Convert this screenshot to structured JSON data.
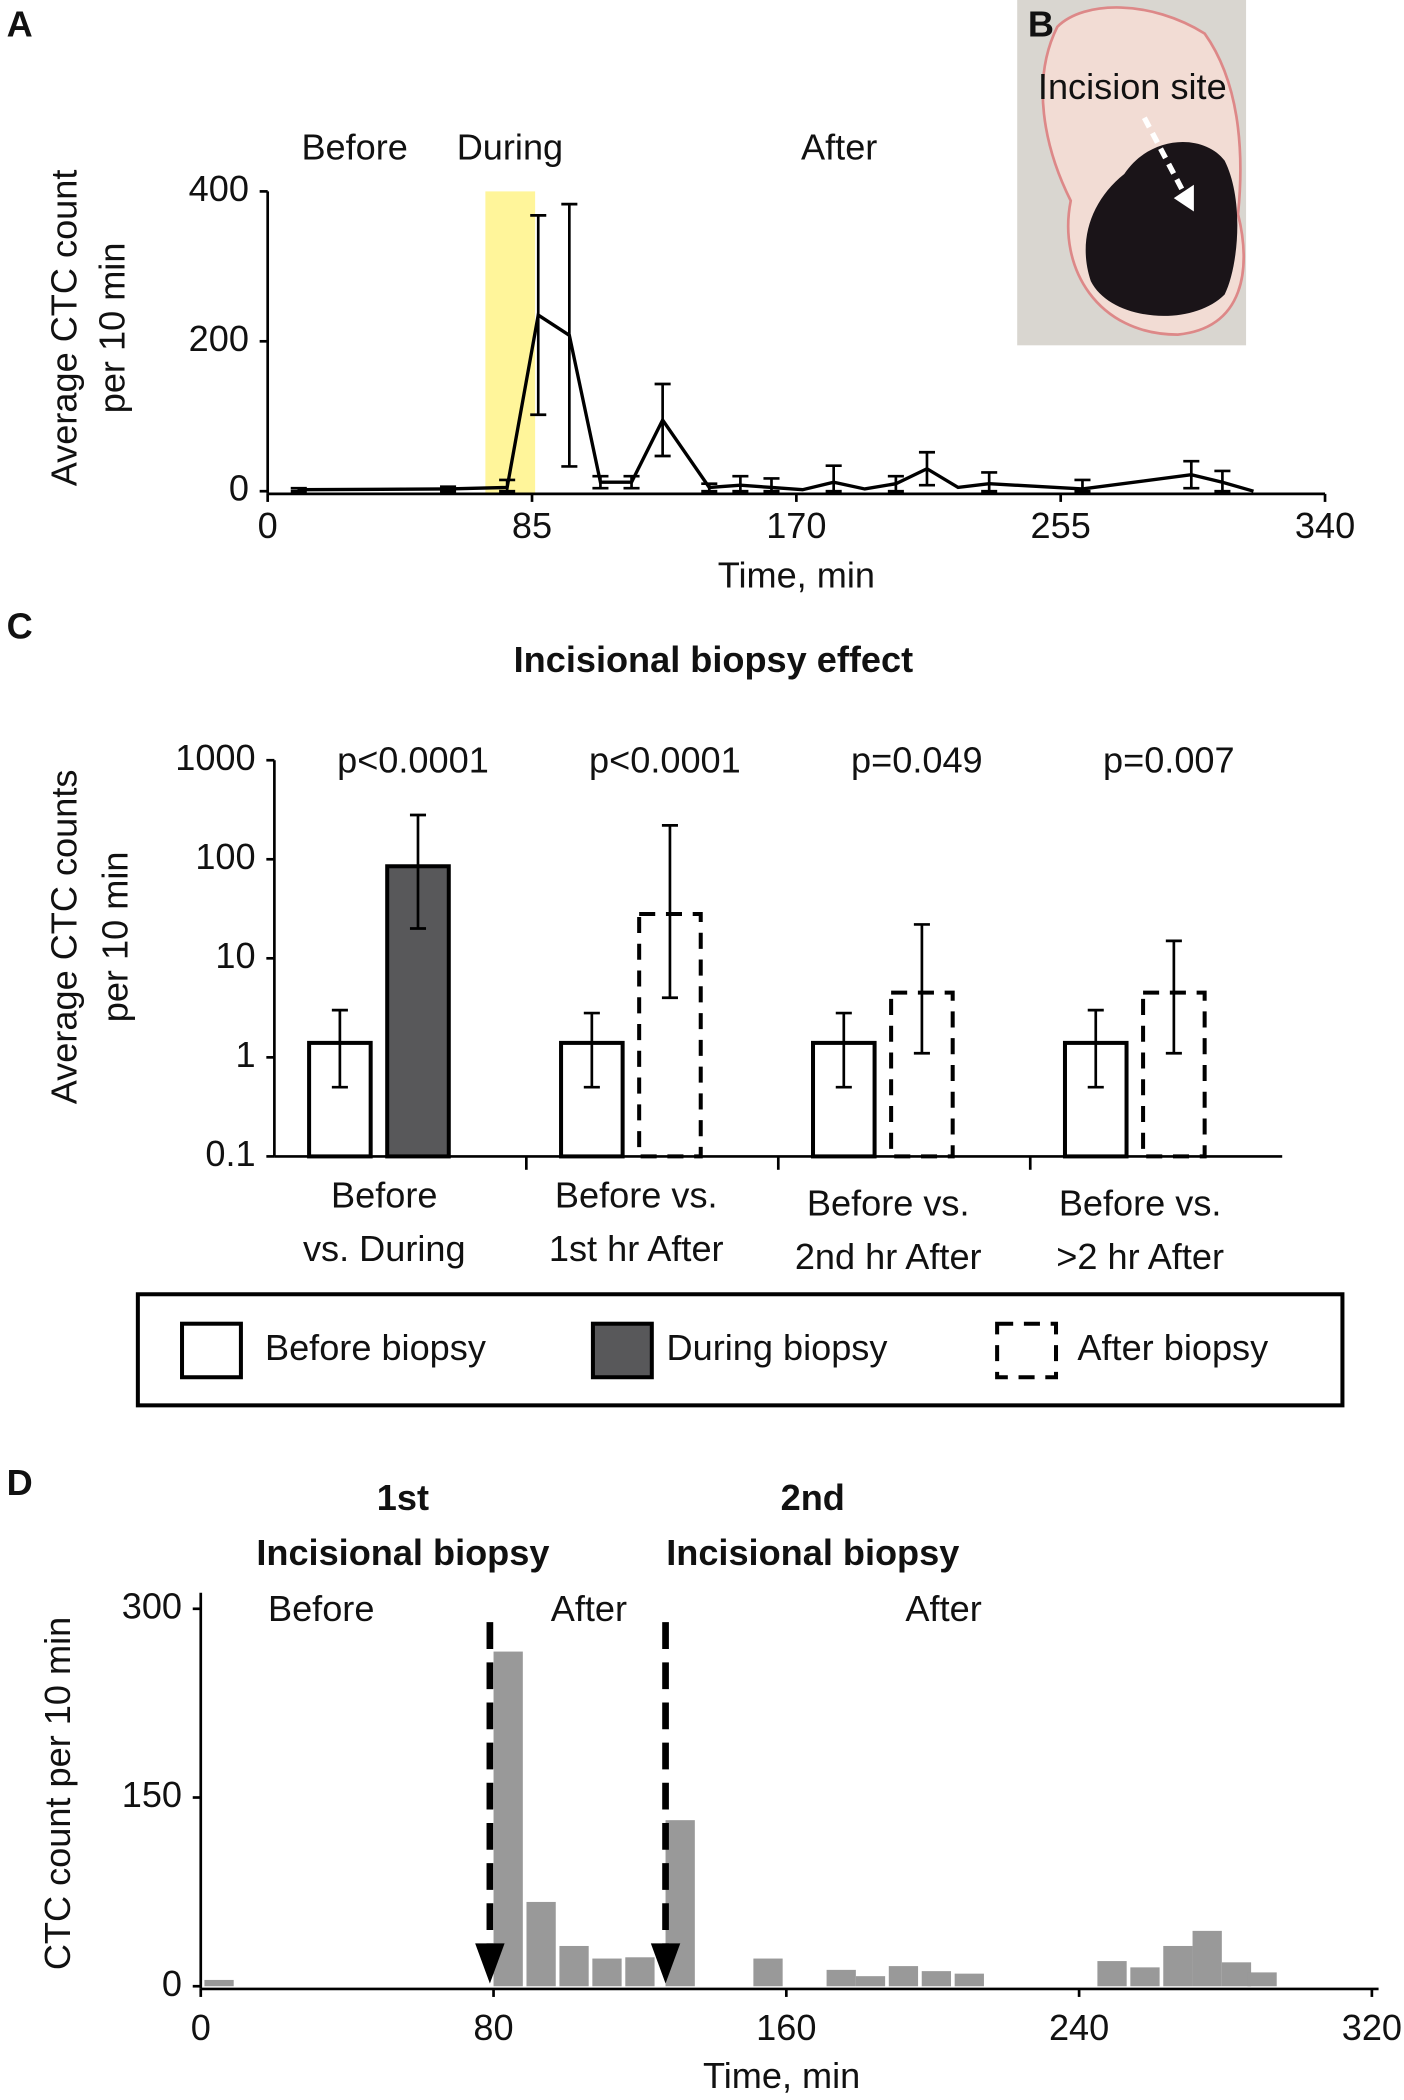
{
  "photo": {
    "panel_label": "B",
    "label": "Incision site"
  },
  "chart_data": [
    {
      "type": "line",
      "panel_label": "A",
      "xlabel": "Time, min",
      "ylabel": [
        "Average CTC count",
        "per 10 min"
      ],
      "xlim": [
        0,
        340
      ],
      "xticks": [
        0,
        85,
        170,
        255,
        340
      ],
      "ylim": [
        0,
        400
      ],
      "yticks": [
        0,
        200,
        400
      ],
      "phase_labels": [
        "Before",
        "During",
        "After"
      ],
      "highlight": {
        "x": [
          70,
          86
        ],
        "color": "#fff59a"
      },
      "series": [
        {
          "color": "#000000",
          "x": [
            10,
            58,
            77,
            87,
            97,
            107,
            117,
            127,
            142,
            152,
            162,
            172,
            182,
            192,
            202,
            212,
            222,
            232,
            262,
            297,
            307,
            317
          ],
          "values": [
            2,
            3,
            5,
            235,
            208,
            12,
            12,
            95,
            5,
            8,
            5,
            2,
            12,
            3,
            10,
            30,
            5,
            10,
            3,
            22,
            12,
            0
          ],
          "errors": [
            2,
            3,
            10,
            133,
            175,
            8,
            8,
            48,
            5,
            12,
            12,
            null,
            22,
            null,
            10,
            22,
            null,
            15,
            12,
            18,
            15,
            null
          ]
        }
      ]
    },
    {
      "type": "bar",
      "panel_label": "C",
      "title": "Incisional biopsy effect",
      "ylabel": [
        "Average CTC counts",
        "per 10 min"
      ],
      "log_y": true,
      "ylim": [
        0.1,
        1000
      ],
      "yticks": [
        0.1,
        1,
        10,
        100,
        1000
      ],
      "categories": [
        [
          "Before",
          "vs. During"
        ],
        [
          "Before vs.",
          "1st hr After"
        ],
        [
          "Before vs.",
          "2nd hr After"
        ],
        [
          "Before vs.",
          ">2 hr After"
        ]
      ],
      "annotations": [
        "p<0.0001",
        "p<0.0001",
        "p=0.049",
        "p=0.007"
      ],
      "legend": "bottom",
      "series": [
        {
          "name": "Before biopsy",
          "color": "#ffffff",
          "dashed": false,
          "values": [
            1.4,
            1.4,
            1.4,
            1.4
          ],
          "errors_low": [
            0.5,
            0.5,
            0.5,
            0.5
          ],
          "errors_high": [
            3,
            2.8,
            2.8,
            3
          ]
        },
        {
          "name": "During biopsy",
          "color": "#58585a",
          "dashed": false,
          "values": [
            85,
            null,
            null,
            null
          ],
          "errors_low": [
            20,
            null,
            null,
            null
          ],
          "errors_high": [
            280,
            null,
            null,
            null
          ]
        },
        {
          "name": "After biopsy",
          "color": "#ffffff",
          "dashed": true,
          "values": [
            null,
            28,
            4.5,
            4.5
          ],
          "errors_low": [
            null,
            4,
            1.1,
            1.1
          ],
          "errors_high": [
            null,
            220,
            22,
            15
          ]
        }
      ]
    },
    {
      "type": "timebar",
      "panel_label": "D",
      "xlabel": "Time, min",
      "ylabel": "CTC count per 10 min",
      "xlim": [
        0,
        320
      ],
      "xticks": [
        0,
        80,
        160,
        240,
        320
      ],
      "ylim": [
        0,
        300
      ],
      "yticks": [
        0,
        150,
        300
      ],
      "color": "#999999",
      "x": [
        5,
        84,
        93,
        102,
        111,
        120,
        131,
        155,
        175,
        183,
        192,
        201,
        210,
        249,
        258,
        267,
        275,
        283,
        290
      ],
      "values": [
        5,
        266,
        67,
        32,
        22,
        23,
        132,
        22,
        13,
        8,
        16,
        12,
        10,
        20,
        15,
        32,
        44,
        19,
        11
      ],
      "phase_labels": [
        "Before",
        "After",
        "After"
      ],
      "events": [
        {
          "x": 79,
          "label": [
            "1st",
            "Incisional biopsy"
          ]
        },
        {
          "x": 127,
          "label": [
            "2nd",
            "Incisional biopsy"
          ]
        }
      ]
    }
  ]
}
